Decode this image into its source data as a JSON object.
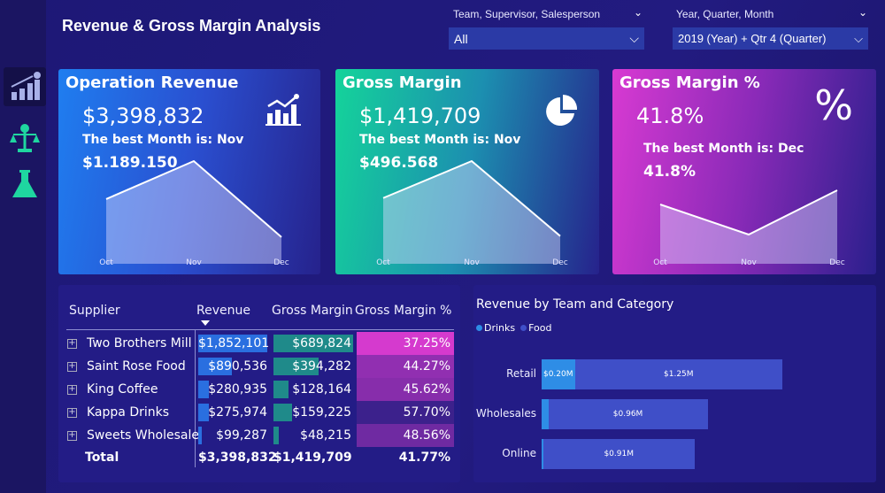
{
  "header": {
    "title": "Revenue & Gross Margin Analysis"
  },
  "filters": [
    {
      "label": "Team, Supervisor, Salesperson",
      "value": "All"
    },
    {
      "label": "Year, Quarter, Month",
      "value": "2019 (Year) + Qtr 4 (Quarter)"
    }
  ],
  "sidebar": {
    "items": [
      {
        "icon": "revenue-chart-icon",
        "active": true
      },
      {
        "icon": "balance-scale-icon",
        "active": false
      },
      {
        "icon": "flask-icon",
        "active": false
      }
    ]
  },
  "cards": [
    {
      "title": "Operation Revenue",
      "value": "$3,398,832",
      "best_label": "The best Month is: Nov",
      "best_value": "$1.189.150",
      "icon": "bar-chart-icon",
      "months": [
        "Oct",
        "Nov",
        "Dec"
      ],
      "trend": [
        0.63,
        1,
        0.26
      ]
    },
    {
      "title": "Gross Margin",
      "value": "$1,419,709",
      "best_label": "The best Month is: Nov",
      "best_value": "$496.568",
      "icon": "pie-chart-icon",
      "months": [
        "Oct",
        "Nov",
        "Dec"
      ],
      "trend": [
        0.64,
        1,
        0.27
      ]
    },
    {
      "title": "Gross Margin %",
      "value": "41.8%",
      "best_label": "The best Month is: Dec",
      "best_value": "41.8%",
      "icon": "percent-icon",
      "months": [
        "Oct",
        "Nov",
        "Dec"
      ],
      "trend": [
        0.67,
        0.33,
        0.83
      ]
    }
  ],
  "table": {
    "headers": [
      "Supplier",
      "Revenue",
      "Gross Margin",
      "Gross Margin %"
    ],
    "sort_column": "Revenue",
    "rows": [
      {
        "supplier": "Two Brothers Mill",
        "revenue": "$1,852,101",
        "rev": 1852101,
        "gm": "$689,824",
        "gmv": 689824,
        "gmp": "37.25%",
        "gmpv": 37.25
      },
      {
        "supplier": "Saint Rose Food",
        "revenue": "$890,536",
        "rev": 890536,
        "gm": "$394,282",
        "gmv": 394282,
        "gmp": "44.27%",
        "gmpv": 44.27
      },
      {
        "supplier": "King Coffee",
        "revenue": "$280,935",
        "rev": 280935,
        "gm": "$128,164",
        "gmv": 128164,
        "gmp": "45.62%",
        "gmpv": 45.62
      },
      {
        "supplier": "Kappa Drinks",
        "revenue": "$275,974",
        "rev": 275974,
        "gm": "$159,225",
        "gmv": 159225,
        "gmp": "57.70%",
        "gmpv": 57.7
      },
      {
        "supplier": "Sweets Wholesale",
        "revenue": "$99,287",
        "rev": 99287,
        "gm": "$48,215",
        "gmv": 48215,
        "gmp": "48.56%",
        "gmpv": 48.56
      }
    ],
    "total": {
      "label": "Total",
      "revenue": "$3,398,832",
      "gm": "$1,419,709",
      "gmp": "41.77%"
    }
  },
  "chart_data": {
    "type": "bar",
    "orientation": "horizontal",
    "stacked": true,
    "title": "Revenue by Team and Category",
    "legend": {
      "position": "top-left",
      "entries": [
        "Drinks",
        "Food"
      ]
    },
    "categories": [
      "Retail",
      "Wholesales",
      "Online"
    ],
    "series": [
      {
        "name": "Drinks",
        "color": "#2e8de6",
        "values": [
          0.2,
          0.04,
          0.01
        ],
        "labels": [
          "$0.20M",
          "",
          ""
        ]
      },
      {
        "name": "Food",
        "color": "#3f4fc8",
        "values": [
          1.25,
          0.96,
          0.91
        ],
        "labels": [
          "$1.25M",
          "$0.96M",
          "$0.91M"
        ]
      }
    ]
  },
  "colors": {
    "revenue_bar": "#2a6fe0",
    "gm_bar": "#1f8a8a",
    "gm_pct": "#d93ad0"
  }
}
